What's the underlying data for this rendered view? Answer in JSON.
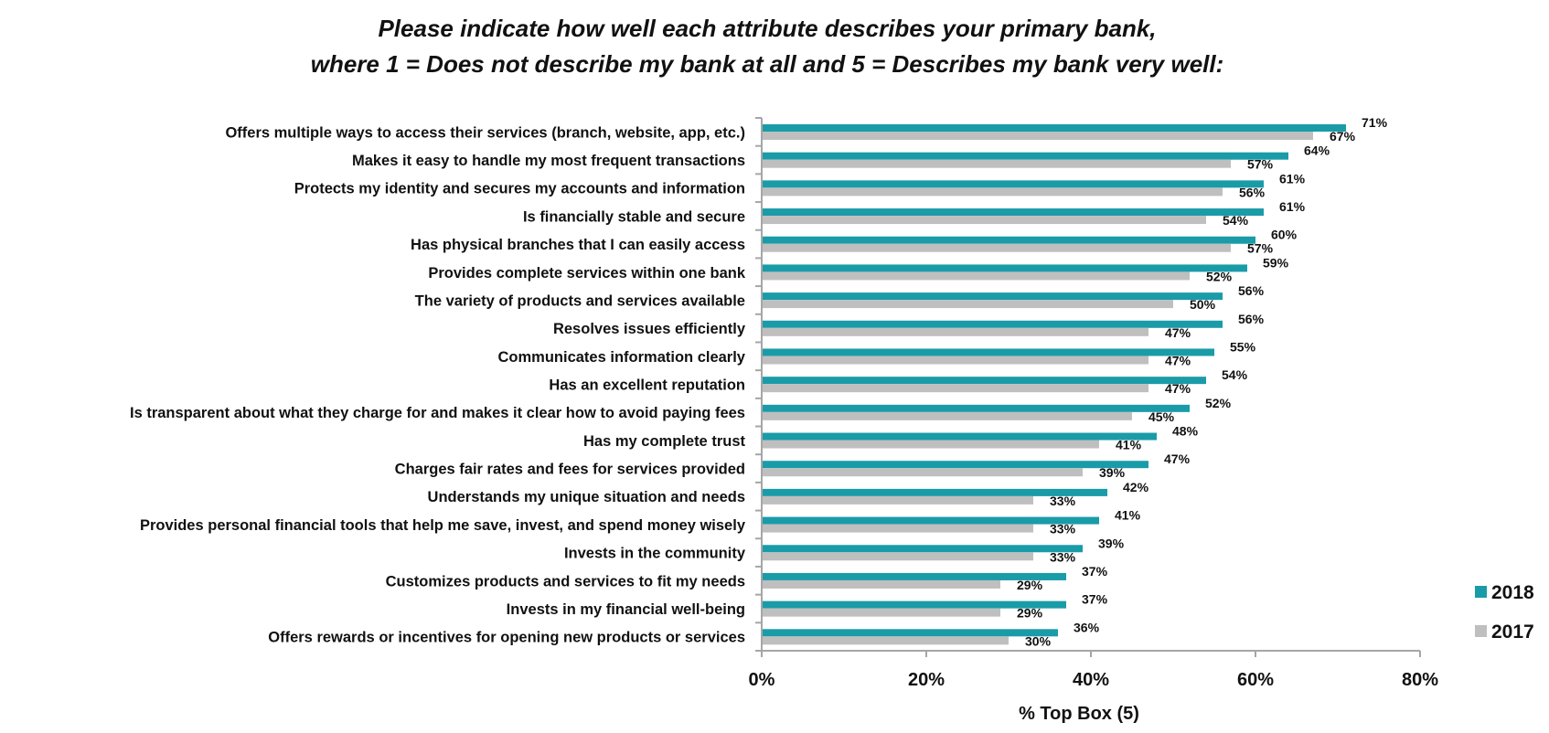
{
  "chart_data": {
    "type": "bar",
    "orientation": "horizontal",
    "title": [
      "Please indicate how well each attribute describes your primary bank,",
      "where 1 = Does not describe my bank at all and 5 = Describes my bank very well:"
    ],
    "xlabel": "% Top Box (5)",
    "ylabel": "",
    "xlim": [
      0,
      80
    ],
    "xticks": [
      "0%",
      "20%",
      "40%",
      "60%",
      "80%"
    ],
    "grid": false,
    "legend_position": "right",
    "categories": [
      "Offers multiple ways to access their services (branch, website, app, etc.)",
      "Makes it easy to handle my most frequent transactions",
      "Protects my identity and secures my accounts and information",
      "Is financially stable and secure",
      "Has physical branches that I can easily access",
      "Provides complete services within one bank",
      "The variety of products and services available",
      "Resolves issues efficiently",
      "Communicates information clearly",
      "Has an excellent reputation",
      "Is transparent about what they charge for and makes it clear how to avoid paying fees",
      "Has my complete trust",
      "Charges fair rates and fees for services provided",
      "Understands my unique situation and needs",
      "Provides personal financial tools that help me save, invest, and spend money wisely",
      "Invests in the community",
      "Customizes products and services to fit my needs",
      "Invests in my financial well-being",
      "Offers rewards or incentives for opening new products or services"
    ],
    "series": [
      {
        "name": "2018",
        "color": "#1a9ba8",
        "values": [
          71,
          64,
          61,
          61,
          60,
          59,
          56,
          56,
          55,
          54,
          52,
          48,
          47,
          42,
          41,
          39,
          37,
          37,
          36
        ]
      },
      {
        "name": "2017",
        "color": "#bfbfbf",
        "values": [
          67,
          57,
          56,
          54,
          57,
          52,
          50,
          47,
          47,
          47,
          45,
          41,
          39,
          33,
          33,
          33,
          29,
          29,
          30
        ]
      }
    ],
    "value_suffix": "%",
    "axis_color": "#a6a6a6"
  }
}
